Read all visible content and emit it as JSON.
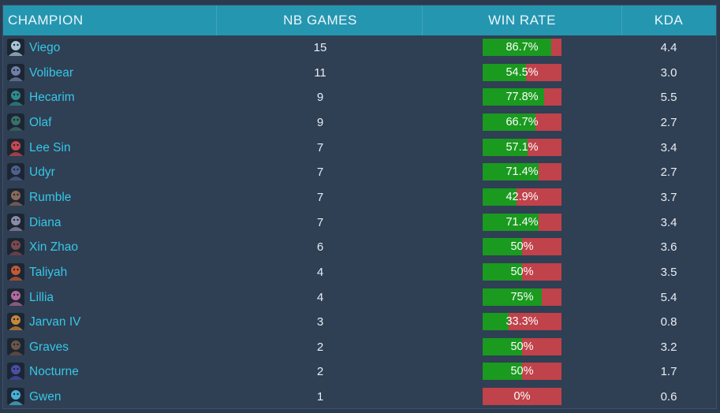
{
  "header": {
    "champion": "CHAMPION",
    "games": "NB GAMES",
    "winrate": "WIN RATE",
    "kda": "KDA"
  },
  "colors": {
    "header_bg": "#2596b0",
    "row_bg": "#2f3f54",
    "champion_link": "#35c8e6",
    "win_fill": "#1a9a1f",
    "loss_fill": "#c0424a"
  },
  "rows": [
    {
      "champion": "Viego",
      "games": "15",
      "winrate_label": "86.7%",
      "winrate": 0.867,
      "kda": "4.4",
      "avatar_icon": "viego-portrait-icon",
      "avatar_color": "#a9c4d6"
    },
    {
      "champion": "Volibear",
      "games": "11",
      "winrate_label": "54.5%",
      "winrate": 0.545,
      "kda": "3.0",
      "avatar_icon": "volibear-portrait-icon",
      "avatar_color": "#6f7fa8"
    },
    {
      "champion": "Hecarim",
      "games": "9",
      "winrate_label": "77.8%",
      "winrate": 0.778,
      "kda": "5.5",
      "avatar_icon": "hecarim-portrait-icon",
      "avatar_color": "#2f8a8c"
    },
    {
      "champion": "Olaf",
      "games": "9",
      "winrate_label": "66.7%",
      "winrate": 0.667,
      "kda": "2.7",
      "avatar_icon": "olaf-portrait-icon",
      "avatar_color": "#3c6f6a"
    },
    {
      "champion": "Lee Sin",
      "games": "7",
      "winrate_label": "57.1%",
      "winrate": 0.571,
      "kda": "3.4",
      "avatar_icon": "lee-sin-portrait-icon",
      "avatar_color": "#c9484f"
    },
    {
      "champion": "Udyr",
      "games": "7",
      "winrate_label": "71.4%",
      "winrate": 0.714,
      "kda": "2.7",
      "avatar_icon": "udyr-portrait-icon",
      "avatar_color": "#50608e"
    },
    {
      "champion": "Rumble",
      "games": "7",
      "winrate_label": "42.9%",
      "winrate": 0.429,
      "kda": "3.7",
      "avatar_icon": "rumble-portrait-icon",
      "avatar_color": "#8a6a5a"
    },
    {
      "champion": "Diana",
      "games": "7",
      "winrate_label": "71.4%",
      "winrate": 0.714,
      "kda": "3.4",
      "avatar_icon": "diana-portrait-icon",
      "avatar_color": "#8c8ca6"
    },
    {
      "champion": "Xin Zhao",
      "games": "6",
      "winrate_label": "50%",
      "winrate": 0.5,
      "kda": "3.6",
      "avatar_icon": "xin-zhao-portrait-icon",
      "avatar_color": "#7a4a4e"
    },
    {
      "champion": "Taliyah",
      "games": "4",
      "winrate_label": "50%",
      "winrate": 0.5,
      "kda": "3.5",
      "avatar_icon": "taliyah-portrait-icon",
      "avatar_color": "#c25a36"
    },
    {
      "champion": "Lillia",
      "games": "4",
      "winrate_label": "75%",
      "winrate": 0.75,
      "kda": "5.4",
      "avatar_icon": "lillia-portrait-icon",
      "avatar_color": "#b06a9e"
    },
    {
      "champion": "Jarvan IV",
      "games": "3",
      "winrate_label": "33.3%",
      "winrate": 0.333,
      "kda": "0.8",
      "avatar_icon": "jarvan-iv-portrait-icon",
      "avatar_color": "#c8873a"
    },
    {
      "champion": "Graves",
      "games": "2",
      "winrate_label": "50%",
      "winrate": 0.5,
      "kda": "3.2",
      "avatar_icon": "graves-portrait-icon",
      "avatar_color": "#6a5548"
    },
    {
      "champion": "Nocturne",
      "games": "2",
      "winrate_label": "50%",
      "winrate": 0.5,
      "kda": "1.7",
      "avatar_icon": "nocturne-portrait-icon",
      "avatar_color": "#4a4fa8"
    },
    {
      "champion": "Gwen",
      "games": "1",
      "winrate_label": "0%",
      "winrate": 0.0,
      "kda": "0.6",
      "avatar_icon": "gwen-portrait-icon",
      "avatar_color": "#4ab0d8"
    }
  ]
}
